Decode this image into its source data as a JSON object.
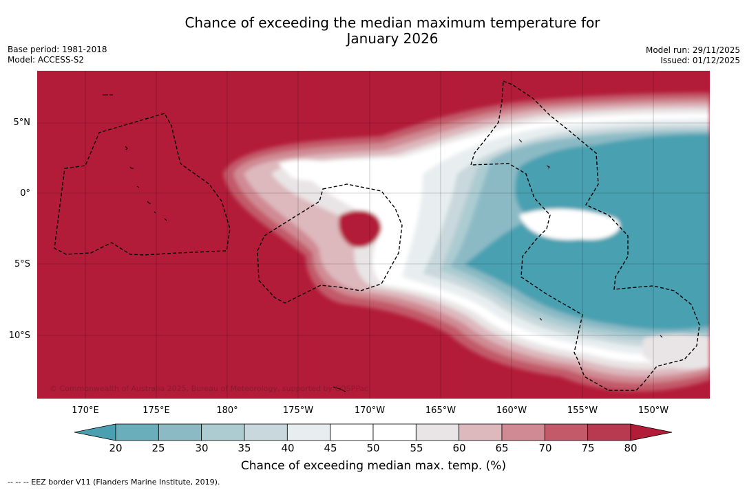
{
  "title_line1": "Chance of exceeding the median maximum temperature for",
  "title_line2": "January 2026",
  "meta": {
    "base_period": "Base period: 1981-2018",
    "model": "Model: ACCESS-S2",
    "model_run": "Model run: 29/11/2025",
    "issued": "Issued: 01/12/2025"
  },
  "copyright": "© Commonwealth of Australia 2025, Bureau of Meteorology, supported by COSPPac",
  "lat_labels": [
    "5°N",
    "0°",
    "5°S",
    "10°S"
  ],
  "lon_labels": [
    "170°E",
    "175°E",
    "180°",
    "175°W",
    "170°W",
    "165°W",
    "160°W",
    "155°W",
    "150°W"
  ],
  "colorbar": {
    "ticks": [
      "20",
      "25",
      "30",
      "35",
      "40",
      "45",
      "50",
      "55",
      "60",
      "65",
      "70",
      "75",
      "80"
    ],
    "colors": [
      "#4aa0b1",
      "#6aaebb",
      "#8bbac5",
      "#acccd2",
      "#c9d8dc",
      "#e8eef0",
      "#ffffff",
      "#ffffff",
      "#e9e4e5",
      "#ddb8bd",
      "#d08a93",
      "#c25a69",
      "#b83a50",
      "#b31c38"
    ],
    "label": "Chance of exceeding median max. temp. (%)"
  },
  "legend_footnote": "--  --  -- EEZ border V11 (Flanders Marine Institute, 2019)."
}
